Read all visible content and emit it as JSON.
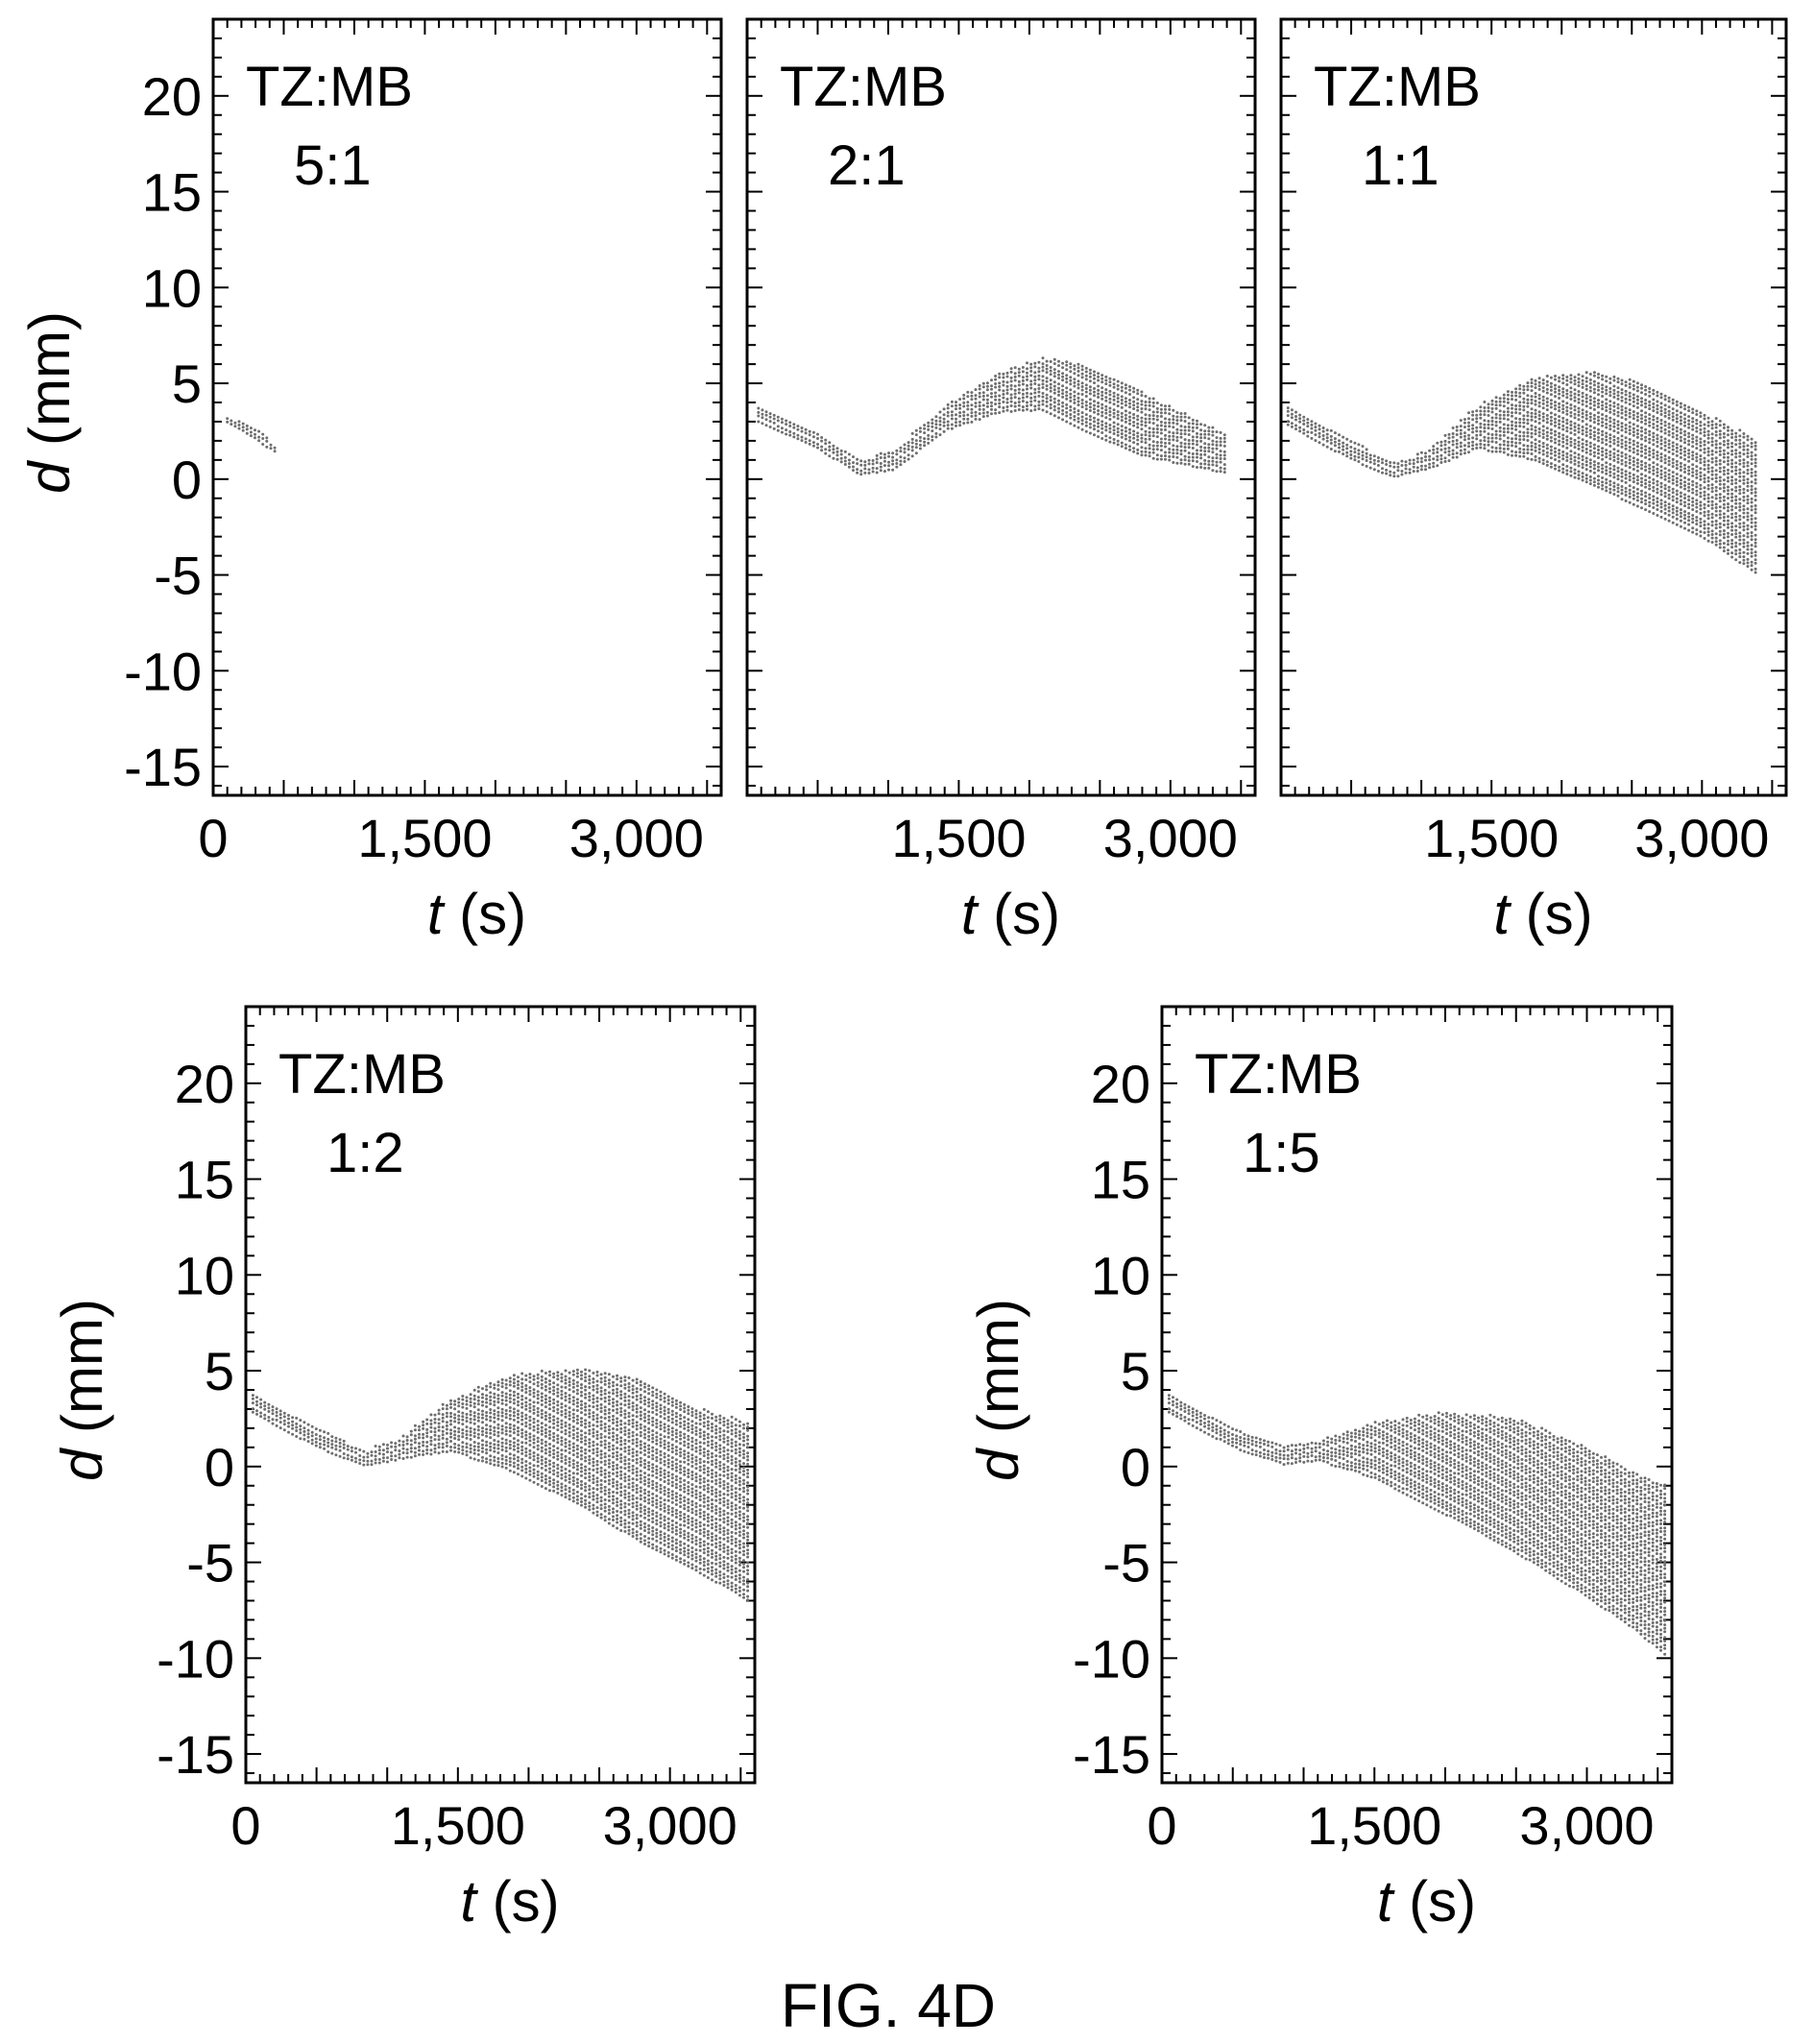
{
  "figure_caption": "FIG. 4D",
  "chart_data": [
    {
      "type": "scatter",
      "annotation": [
        "TZ:MB",
        "5:1"
      ],
      "xlabel": {
        "var": "t",
        "unit": " (s)"
      },
      "ylabel": {
        "var": "d",
        "unit": " (mm)"
      },
      "xlim": [
        0,
        3600
      ],
      "ylim": [
        -16.5,
        24
      ],
      "xticks": [
        0,
        1500,
        3000
      ],
      "xtick_labels": [
        "0",
        "1,500",
        "3,000"
      ],
      "yticks": [
        20,
        15,
        10,
        5,
        0,
        -5,
        -10,
        -15
      ],
      "ytick_labels": [
        "20",
        "15",
        "10",
        "5",
        "0",
        "-5",
        "-10",
        "-15"
      ],
      "show_y_tick_labels": true,
      "show_ylabel": true,
      "series": [
        {
          "band": [
            {
              "x": 100,
              "y_top": 3.3,
              "y_bottom": 2.9
            },
            {
              "x": 300,
              "y_top": 2.6,
              "y_bottom": 2.1
            },
            {
              "x": 450,
              "y_top": 1.7,
              "y_bottom": 1.3
            }
          ]
        }
      ]
    },
    {
      "type": "scatter",
      "annotation": [
        "TZ:MB",
        "2:1"
      ],
      "xlabel": {
        "var": "t",
        "unit": " (s)"
      },
      "ylabel": {
        "var": "d",
        "unit": " (mm)"
      },
      "xlim": [
        0,
        3600
      ],
      "ylim": [
        -16.5,
        24
      ],
      "xticks": [
        1500,
        3000
      ],
      "xtick_labels": [
        "1,500",
        "3,000"
      ],
      "yticks": [
        20,
        15,
        10,
        5,
        0,
        -5,
        -10,
        -15
      ],
      "ytick_labels": [],
      "show_y_tick_labels": false,
      "show_ylabel": false,
      "series": [
        {
          "band": [
            {
              "x": 80,
              "y_top": 3.8,
              "y_bottom": 3.0
            },
            {
              "x": 500,
              "y_top": 2.3,
              "y_bottom": 1.6
            },
            {
              "x": 800,
              "y_top": 1.0,
              "y_bottom": 0.2
            },
            {
              "x": 1050,
              "y_top": 1.5,
              "y_bottom": 0.5
            },
            {
              "x": 1400,
              "y_top": 3.8,
              "y_bottom": 2.5
            },
            {
              "x": 1800,
              "y_top": 5.6,
              "y_bottom": 3.5
            },
            {
              "x": 2100,
              "y_top": 6.3,
              "y_bottom": 3.6
            },
            {
              "x": 2400,
              "y_top": 6.0,
              "y_bottom": 2.5
            },
            {
              "x": 2800,
              "y_top": 4.5,
              "y_bottom": 1.2
            },
            {
              "x": 3400,
              "y_top": 2.3,
              "y_bottom": 0.3
            }
          ]
        }
      ]
    },
    {
      "type": "scatter",
      "annotation": [
        "TZ:MB",
        "1:1"
      ],
      "xlabel": {
        "var": "t",
        "unit": " (s)"
      },
      "ylabel": {
        "var": "d",
        "unit": " (mm)"
      },
      "xlim": [
        0,
        3600
      ],
      "ylim": [
        -16.5,
        24
      ],
      "xticks": [
        1500,
        3000
      ],
      "xtick_labels": [
        "1,500",
        "3,000"
      ],
      "yticks": [
        20,
        15,
        10,
        5,
        0,
        -5,
        -10,
        -15
      ],
      "ytick_labels": [],
      "show_y_tick_labels": false,
      "show_ylabel": false,
      "series": [
        {
          "band": [
            {
              "x": 50,
              "y_top": 3.7,
              "y_bottom": 2.8
            },
            {
              "x": 500,
              "y_top": 2.0,
              "y_bottom": 1.0
            },
            {
              "x": 800,
              "y_top": 0.8,
              "y_bottom": 0.1
            },
            {
              "x": 1050,
              "y_top": 1.5,
              "y_bottom": 0.5
            },
            {
              "x": 1400,
              "y_top": 3.8,
              "y_bottom": 1.6
            },
            {
              "x": 1800,
              "y_top": 5.3,
              "y_bottom": 1.0
            },
            {
              "x": 2200,
              "y_top": 5.6,
              "y_bottom": -0.3
            },
            {
              "x": 2600,
              "y_top": 5.0,
              "y_bottom": -1.6
            },
            {
              "x": 3000,
              "y_top": 3.5,
              "y_bottom": -3.0
            },
            {
              "x": 3400,
              "y_top": 2.0,
              "y_bottom": -5.0
            }
          ]
        }
      ]
    },
    {
      "type": "scatter",
      "annotation": [
        "TZ:MB",
        "1:2"
      ],
      "xlabel": {
        "var": "t",
        "unit": " (s)"
      },
      "ylabel": {
        "var": "d",
        "unit": " (mm)"
      },
      "xlim": [
        0,
        3600
      ],
      "ylim": [
        -16.5,
        24
      ],
      "xticks": [
        0,
        1500,
        3000
      ],
      "xtick_labels": [
        "0",
        "1,500",
        "3,000"
      ],
      "yticks": [
        20,
        15,
        10,
        5,
        0,
        -5,
        -10,
        -15
      ],
      "ytick_labels": [
        "20",
        "15",
        "10",
        "5",
        "0",
        "-5",
        "-10",
        "-15"
      ],
      "show_y_tick_labels": true,
      "show_ylabel": true,
      "series": [
        {
          "band": [
            {
              "x": 50,
              "y_top": 3.7,
              "y_bottom": 2.8
            },
            {
              "x": 500,
              "y_top": 2.0,
              "y_bottom": 1.0
            },
            {
              "x": 850,
              "y_top": 0.8,
              "y_bottom": 0.0
            },
            {
              "x": 1100,
              "y_top": 1.5,
              "y_bottom": 0.4
            },
            {
              "x": 1450,
              "y_top": 3.5,
              "y_bottom": 0.8
            },
            {
              "x": 1900,
              "y_top": 4.8,
              "y_bottom": -0.3
            },
            {
              "x": 2400,
              "y_top": 5.1,
              "y_bottom": -2.2
            },
            {
              "x": 2800,
              "y_top": 4.5,
              "y_bottom": -4.0
            },
            {
              "x": 3200,
              "y_top": 3.0,
              "y_bottom": -5.5
            },
            {
              "x": 3550,
              "y_top": 2.3,
              "y_bottom": -7.0
            }
          ]
        }
      ]
    },
    {
      "type": "scatter",
      "annotation": [
        "TZ:MB",
        "1:5"
      ],
      "xlabel": {
        "var": "t",
        "unit": " (s)"
      },
      "ylabel": {
        "var": "d",
        "unit": " (mm)"
      },
      "xlim": [
        0,
        3600
      ],
      "ylim": [
        -16.5,
        24
      ],
      "xticks": [
        0,
        1500,
        3000
      ],
      "xtick_labels": [
        "0",
        "1,500",
        "3,000"
      ],
      "yticks": [
        20,
        15,
        10,
        5,
        0,
        -5,
        -10,
        -15
      ],
      "ytick_labels": [
        "20",
        "15",
        "10",
        "5",
        "0",
        "-5",
        "-10",
        "-15"
      ],
      "show_y_tick_labels": true,
      "show_ylabel": true,
      "series": [
        {
          "band": [
            {
              "x": 50,
              "y_top": 3.7,
              "y_bottom": 2.8
            },
            {
              "x": 500,
              "y_top": 2.0,
              "y_bottom": 1.0
            },
            {
              "x": 850,
              "y_top": 1.0,
              "y_bottom": 0.1
            },
            {
              "x": 1100,
              "y_top": 1.3,
              "y_bottom": 0.3
            },
            {
              "x": 1500,
              "y_top": 2.3,
              "y_bottom": -0.6
            },
            {
              "x": 2000,
              "y_top": 2.8,
              "y_bottom": -2.5
            },
            {
              "x": 2500,
              "y_top": 2.5,
              "y_bottom": -4.5
            },
            {
              "x": 3000,
              "y_top": 1.0,
              "y_bottom": -6.8
            },
            {
              "x": 3300,
              "y_top": -0.2,
              "y_bottom": -8.3
            },
            {
              "x": 3550,
              "y_top": -1.0,
              "y_bottom": -9.8
            }
          ]
        }
      ]
    }
  ]
}
